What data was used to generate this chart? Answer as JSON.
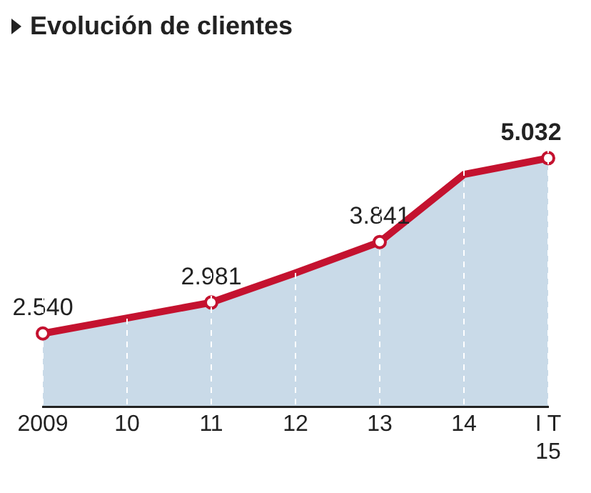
{
  "chart_data": {
    "type": "area",
    "title": "Evolución de clientes",
    "categories": [
      "2009",
      "10",
      "11",
      "12",
      "13",
      "14",
      "I T 15"
    ],
    "series": [
      {
        "color": "#c4122f",
        "values": [
          2540,
          2760,
          2981,
          3400,
          3841,
          4800,
          5032
        ],
        "value_labels": [
          "2.540",
          null,
          "2.981",
          null,
          "3.841",
          null,
          "5.032"
        ]
      }
    ],
    "grid": "x",
    "marker": "circle",
    "legend": false
  }
}
